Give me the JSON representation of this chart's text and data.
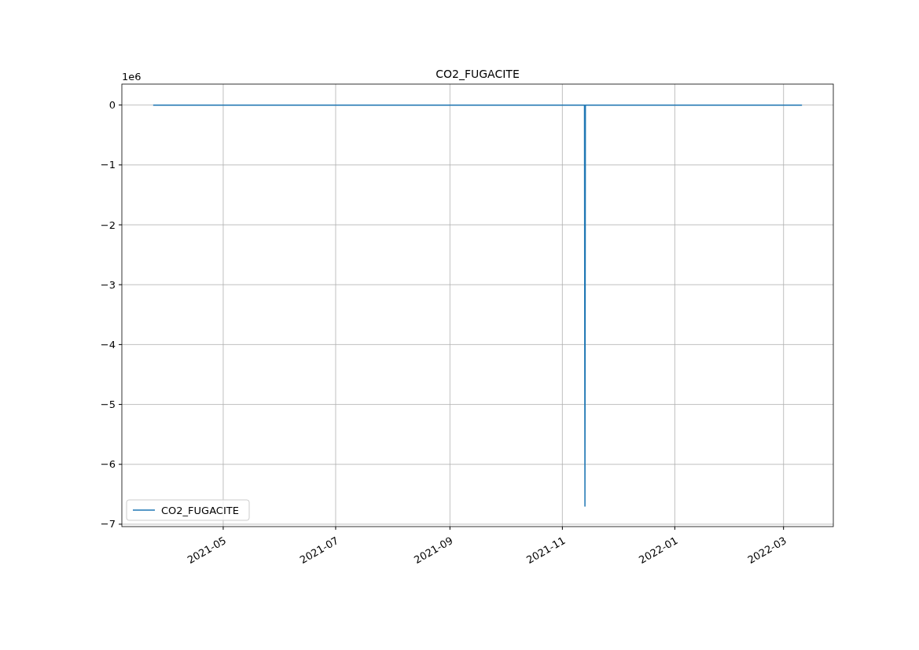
{
  "chart_data": {
    "type": "line",
    "title": "CO2_FUGACITE",
    "annotations": [
      "1e6"
    ],
    "x": [
      "2021-03-24",
      "2021-04-20",
      "2021-06-08",
      "2021-08-15",
      "2021-10-20",
      "2021-11-02",
      "2021-11-13T00:00",
      "2021-11-13T06:00",
      "2021-11-13T12:00",
      "2021-12-10",
      "2022-01-20",
      "2022-02-10",
      "2022-03-11"
    ],
    "series": [
      {
        "name": "CO2_FUGACITE",
        "color": "#1f77b4",
        "values": [
          0,
          0,
          0,
          0,
          0,
          0,
          0,
          -6.7,
          0,
          0,
          0,
          0,
          0
        ]
      }
    ],
    "xlim": [
      "2021-03-07",
      "2022-03-28"
    ],
    "xticks": [
      {
        "value": "2021-05-01",
        "label": "2021-05"
      },
      {
        "value": "2021-07-01",
        "label": "2021-07"
      },
      {
        "value": "2021-09-01",
        "label": "2021-09"
      },
      {
        "value": "2021-11-01",
        "label": "2021-11"
      },
      {
        "value": "2022-01-01",
        "label": "2022-01"
      },
      {
        "value": "2022-03-01",
        "label": "2022-03"
      }
    ],
    "ylim": [
      -7.04,
      0.35
    ],
    "yticks": [
      0,
      {
        "value": -1,
        "label": "−1"
      },
      {
        "value": -2,
        "label": "−2"
      },
      {
        "value": -3,
        "label": "−3"
      },
      {
        "value": -4,
        "label": "−4"
      },
      {
        "value": -5,
        "label": "−5"
      },
      {
        "value": -6,
        "label": "−6"
      },
      {
        "value": -7,
        "label": "−7"
      }
    ],
    "grid": true,
    "legend": "bottom left",
    "line_style": "solid",
    "marker": "none"
  }
}
